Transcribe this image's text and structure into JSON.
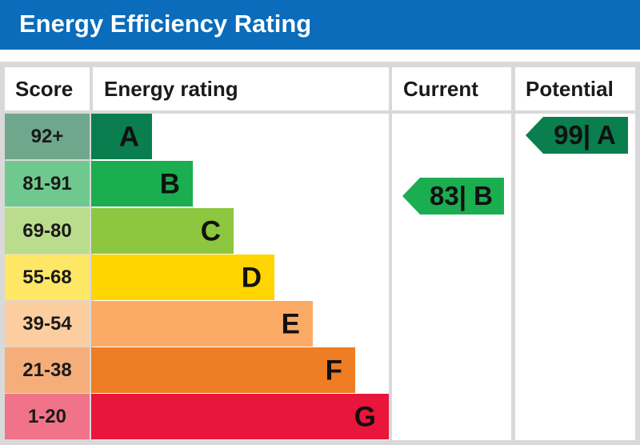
{
  "title": "Energy Efficiency Rating",
  "headers": {
    "score": "Score",
    "energy_rating": "Energy rating",
    "current": "Current",
    "potential": "Potential"
  },
  "chart_data": {
    "type": "bar",
    "categories": [
      "A",
      "B",
      "C",
      "D",
      "E",
      "F",
      "G"
    ],
    "score_ranges": [
      "92+",
      "81-91",
      "69-80",
      "55-68",
      "39-54",
      "21-38",
      "1-20"
    ],
    "colors": {
      "band": [
        "#0a7e4e",
        "#1aae51",
        "#8dc63f",
        "#ffd400",
        "#fbaa65",
        "#ef7d23",
        "#e9153b"
      ],
      "score": [
        "#6fa78c",
        "#6fc98e",
        "#b9dd8c",
        "#ffe766",
        "#fcce9f",
        "#f5ae79",
        "#f0738a"
      ]
    },
    "current": {
      "value": 83,
      "band": "B",
      "label": "83| B",
      "color": "#1aae51"
    },
    "potential": {
      "value": 99,
      "band": "A",
      "label": "99| A",
      "color": "#0a7e4e"
    }
  }
}
